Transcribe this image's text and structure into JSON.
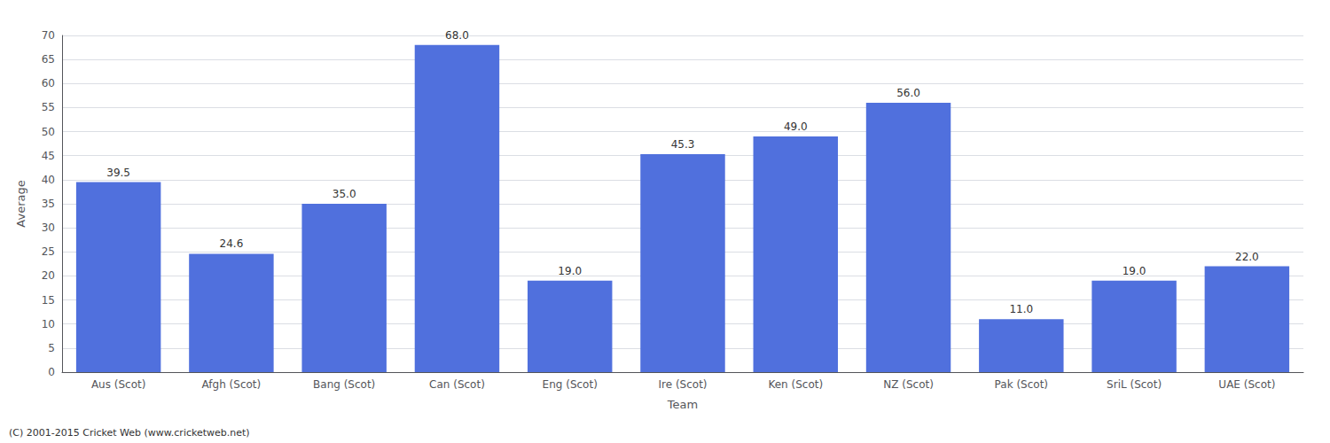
{
  "chart_data": {
    "type": "bar",
    "categories": [
      "Aus (Scot)",
      "Afgh (Scot)",
      "Bang (Scot)",
      "Can (Scot)",
      "Eng (Scot)",
      "Ire (Scot)",
      "Ken (Scot)",
      "NZ (Scot)",
      "Pak (Scot)",
      "SriL (Scot)",
      "UAE (Scot)"
    ],
    "values": [
      39.5,
      24.6,
      35.0,
      68.0,
      19.0,
      45.3,
      49.0,
      56.0,
      11.0,
      19.0,
      22.0
    ],
    "value_labels": [
      "39.5",
      "24.6",
      "35.0",
      "68.0",
      "19.0",
      "45.3",
      "49.0",
      "56.0",
      "11.0",
      "19.0",
      "22.0"
    ],
    "data_labels": true,
    "xlabel": "Team",
    "ylabel": "Average",
    "ylim": [
      0,
      70
    ],
    "yticks": [
      0,
      5,
      10,
      15,
      20,
      25,
      30,
      35,
      40,
      45,
      50,
      55,
      60,
      65,
      70
    ],
    "grid": true,
    "annotations": [
      "(C) 2001-2015 Cricket Web (www.cricketweb.net)"
    ]
  }
}
